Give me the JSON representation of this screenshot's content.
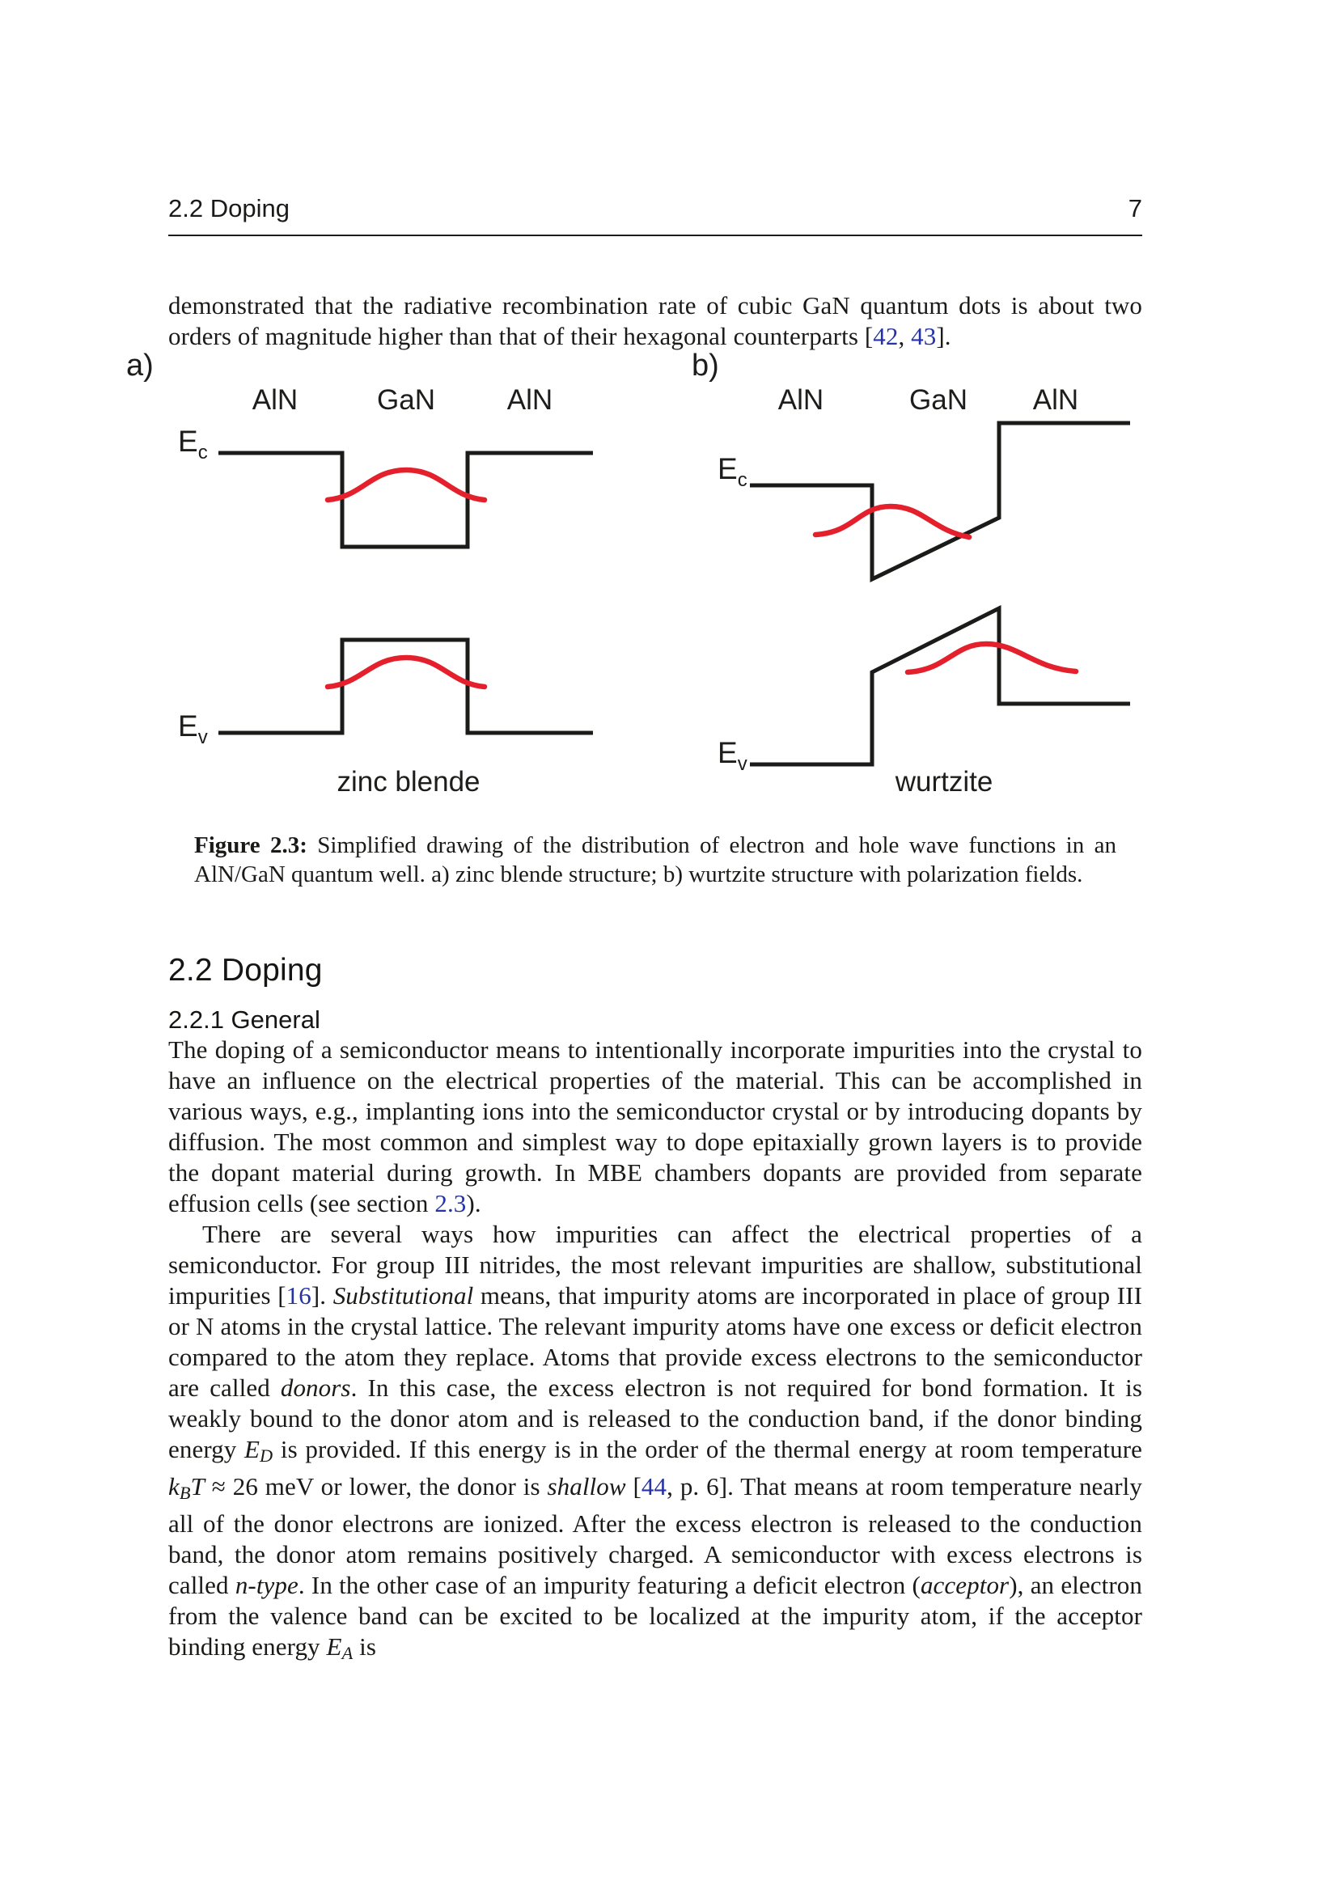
{
  "header": {
    "section": "2.2 Doping",
    "page_number": "7"
  },
  "intro": {
    "segments": [
      {
        "s": "n",
        "t": "demonstrated that the radiative recombination rate of cubic GaN quantum dots is about two orders of magnitude higher than that of their hexagonal counterparts ["
      },
      {
        "s": "l",
        "t": "42"
      },
      {
        "s": "n",
        "t": ", "
      },
      {
        "s": "l",
        "t": "43"
      },
      {
        "s": "n",
        "t": "]."
      }
    ]
  },
  "figure": {
    "panel_a": {
      "tag": "a)",
      "material_left": "AlN",
      "material_center": "GaN",
      "material_right": "AlN",
      "ec_main": "E",
      "ec_sub": "c",
      "ev_main": "E",
      "ev_sub": "v",
      "caption": "zinc blende"
    },
    "panel_b": {
      "tag": "b)",
      "material_left": "AlN",
      "material_center": "GaN",
      "material_right": "AlN",
      "ec_main": "E",
      "ec_sub": "c",
      "ev_main": "E",
      "ev_sub": "v",
      "caption": "wurtzite"
    }
  },
  "figure_caption": {
    "segments": [
      {
        "s": "b",
        "t": "Figure 2.3:"
      },
      {
        "s": "n",
        "t": " Simplified drawing of the distribution of electron and hole wave functions in an AlN/GaN quantum well. a) zinc blende structure; b) wurtzite structure with polarization fields."
      }
    ]
  },
  "section": {
    "heading": "2.2 Doping"
  },
  "subsection": {
    "heading": "2.2.1 General"
  },
  "para1": {
    "segments": [
      {
        "s": "n",
        "t": "The doping of a semiconductor means to intentionally incorporate impurities into the crystal to have an influence on the electrical properties of the material. This can be accomplished in various ways, e.g., implanting ions into the semiconductor crystal or by introducing dopants by diffusion. The most common and simplest way to dope epitaxially grown layers is to provide the dopant material during growth. In MBE chambers dopants are provided from separate effusion cells (see section "
      },
      {
        "s": "l",
        "t": "2.3"
      },
      {
        "s": "n",
        "t": ")."
      }
    ]
  },
  "para2": {
    "segments": [
      {
        "s": "n",
        "t": "There are several ways how impurities can affect the electrical properties of a semiconductor. For group III nitrides, the most relevant impurities are shallow, substitutional impurities ["
      },
      {
        "s": "l",
        "t": "16"
      },
      {
        "s": "n",
        "t": "]. "
      },
      {
        "s": "i",
        "t": "Substitutional"
      },
      {
        "s": "n",
        "t": " means, that impurity atoms are incorporated in place of group III or N atoms in the crystal lattice. The relevant impurity atoms have one excess or deficit electron compared to the atom they replace. Atoms that provide excess electrons to the semiconductor are called "
      },
      {
        "s": "i",
        "t": "donors"
      },
      {
        "s": "n",
        "t": ". In this case, the excess electron is not required for bond formation. It is weakly bound to the donor atom and is released to the conduction band, if the donor binding energy "
      },
      {
        "s": "m",
        "t": "E"
      },
      {
        "s": "ms",
        "t": "D"
      },
      {
        "s": "n",
        "t": " is provided. If this energy is in the order of the thermal energy at room temperature "
      },
      {
        "s": "m",
        "t": "k"
      },
      {
        "s": "ms",
        "t": "B"
      },
      {
        "s": "m",
        "t": "T"
      },
      {
        "s": "n",
        "t": " ≈ 26 meV or lower, the donor is "
      },
      {
        "s": "i",
        "t": "shallow"
      },
      {
        "s": "n",
        "t": " ["
      },
      {
        "s": "l",
        "t": "44"
      },
      {
        "s": "n",
        "t": ", p. 6]. That means at room temperature nearly all of the donor electrons are ionized. After the excess electron is released to the conduction band, the donor atom remains positively charged. A semiconductor with excess electrons is called "
      },
      {
        "s": "i",
        "t": "n-type"
      },
      {
        "s": "n",
        "t": ". In the other case of an impurity featuring a deficit electron ("
      },
      {
        "s": "i",
        "t": "acceptor"
      },
      {
        "s": "n",
        "t": "), an electron from the valence band can be excited to be localized at the impurity atom, if the acceptor binding energy "
      },
      {
        "s": "m",
        "t": "E"
      },
      {
        "s": "ms",
        "t": "A"
      },
      {
        "s": "n",
        "t": " is"
      }
    ]
  },
  "colors": {
    "wave_red": "#e4202c",
    "band_black": "#1b1b19",
    "link_blue": "#2534a4"
  }
}
